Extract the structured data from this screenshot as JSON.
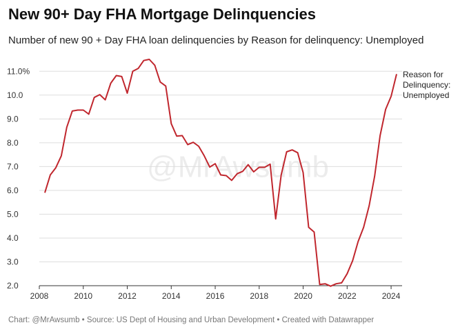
{
  "chart_data": {
    "type": "line",
    "title": "New 90+ Day FHA Mortgage Delinquencies",
    "subtitle": "Number of new 90 + Day FHA loan delinquencies by Reason for delinquency: Unemployed",
    "footer": "Chart: @MrAwsumb • Source: US Dept of Housing and Urban Development • Created with Datawrapper",
    "watermark": "@MrAwsumb",
    "x": [
      2008.25,
      2008.5,
      2008.75,
      2009,
      2009.25,
      2009.5,
      2009.75,
      2010,
      2010.25,
      2010.5,
      2010.75,
      2011,
      2011.25,
      2011.5,
      2011.75,
      2012,
      2012.25,
      2012.5,
      2012.75,
      2013,
      2013.25,
      2013.5,
      2013.75,
      2014,
      2014.25,
      2014.5,
      2014.75,
      2015,
      2015.25,
      2015.5,
      2015.75,
      2016,
      2016.25,
      2016.5,
      2016.75,
      2017,
      2017.25,
      2017.5,
      2017.75,
      2018,
      2018.25,
      2018.5,
      2018.75,
      2019,
      2019.25,
      2019.5,
      2019.75,
      2020,
      2020.25,
      2020.5,
      2020.75,
      2021,
      2021.25,
      2021.5,
      2021.75,
      2022,
      2022.25,
      2022.5,
      2022.75,
      2023,
      2023.25,
      2023.5,
      2023.75,
      2024,
      2024.25
    ],
    "series": [
      {
        "name": "Reason for Delinquency: Unemployed",
        "color": "#c0262d",
        "values": [
          5.9,
          6.65,
          6.95,
          7.45,
          8.65,
          9.33,
          9.37,
          9.37,
          9.2,
          9.9,
          10.02,
          9.8,
          10.5,
          10.82,
          10.78,
          10.08,
          11.0,
          11.12,
          11.45,
          11.5,
          11.25,
          10.55,
          10.38,
          8.8,
          8.28,
          8.3,
          7.92,
          8.02,
          7.85,
          7.45,
          6.98,
          7.12,
          6.65,
          6.62,
          6.42,
          6.7,
          6.8,
          7.08,
          6.78,
          6.97,
          6.97,
          7.1,
          4.8,
          6.65,
          7.62,
          7.7,
          7.58,
          6.75,
          4.45,
          4.25,
          2.05,
          2.08,
          1.98,
          2.08,
          2.12,
          2.5,
          3.05,
          3.85,
          4.45,
          5.35,
          6.6,
          8.3,
          9.4,
          9.95,
          10.88
        ]
      }
    ],
    "xlim": [
      2008,
      2024.5
    ],
    "xticks": [
      2008,
      2010,
      2012,
      2014,
      2016,
      2018,
      2020,
      2022,
      2024
    ],
    "ylim": [
      2,
      11.5
    ],
    "yticks": [
      {
        "value": 2,
        "label": "2.0"
      },
      {
        "value": 3,
        "label": "3.0"
      },
      {
        "value": 4,
        "label": "4.0"
      },
      {
        "value": 5,
        "label": "5.0"
      },
      {
        "value": 6,
        "label": "6.0"
      },
      {
        "value": 7,
        "label": "7.0"
      },
      {
        "value": 8,
        "label": "8.0"
      },
      {
        "value": 9,
        "label": "9.0"
      },
      {
        "value": 10,
        "label": "10.0"
      },
      {
        "value": 11,
        "label": "11.0%"
      }
    ],
    "grid": true
  }
}
